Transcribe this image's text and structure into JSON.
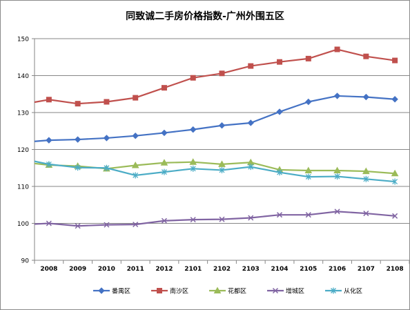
{
  "chart_data": {
    "type": "line",
    "title": "同致诚二手房价格指数-广州外围五区",
    "xlabel": "",
    "ylabel": "",
    "ylim": [
      90,
      150
    ],
    "yticks": [
      90,
      100,
      110,
      120,
      130,
      140,
      150
    ],
    "grid": "horizontal",
    "legend_position": "bottom",
    "categories": [
      "2008",
      "2009",
      "2010",
      "2011",
      "2012",
      "2101",
      "2102",
      "2103",
      "2104",
      "2105",
      "2106",
      "2107",
      "2108"
    ],
    "series": [
      {
        "name": "番禺区",
        "color": "#4472C4",
        "marker": "diamond",
        "start_value": 122.2,
        "values": [
          122.5,
          122.7,
          123.1,
          123.7,
          124.5,
          125.4,
          126.5,
          127.2,
          130.2,
          132.9,
          134.5,
          134.2,
          133.6
        ]
      },
      {
        "name": "南沙区",
        "color": "#C0504D",
        "marker": "square",
        "start_value": 132.8,
        "values": [
          133.5,
          132.4,
          132.9,
          134.0,
          136.7,
          139.4,
          140.6,
          142.6,
          143.7,
          144.6,
          147.1,
          145.2,
          144.1
        ]
      },
      {
        "name": "花都区",
        "color": "#9BBB59",
        "marker": "triangle",
        "start_value": 116.2,
        "values": [
          115.8,
          115.5,
          114.8,
          115.7,
          116.4,
          116.6,
          116.0,
          116.5,
          114.5,
          114.3,
          114.3,
          114.1,
          113.5
        ]
      },
      {
        "name": "增城区",
        "color": "#8064A2",
        "marker": "x",
        "start_value": 99.8,
        "values": [
          100.0,
          99.3,
          99.6,
          99.7,
          100.7,
          101.0,
          101.1,
          101.5,
          102.3,
          102.3,
          103.2,
          102.7,
          102.0
        ]
      },
      {
        "name": "从化区",
        "color": "#4BACC6",
        "marker": "asterisk",
        "start_value": 116.8,
        "values": [
          116.0,
          115.1,
          115.0,
          113.0,
          113.9,
          114.8,
          114.4,
          115.3,
          113.8,
          112.6,
          112.7,
          112.0,
          111.3
        ]
      }
    ]
  }
}
